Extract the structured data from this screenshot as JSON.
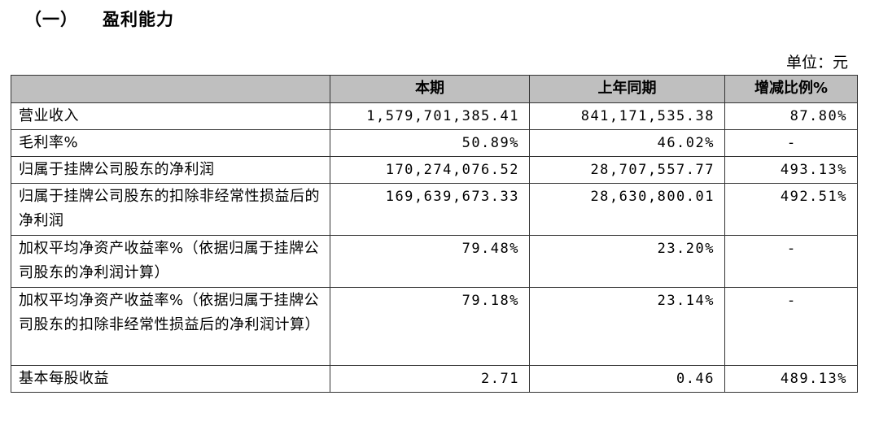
{
  "section": {
    "number": "（一）",
    "title": "盈利能力"
  },
  "unit": "单位：元",
  "table": {
    "headers": [
      "",
      "本期",
      "上年同期",
      "增减比例%"
    ],
    "rows": [
      {
        "label": "营业收入",
        "current": "1,579,701,385.41",
        "prior": "841,171,535.38",
        "change": "87.80%"
      },
      {
        "label": "毛利率%",
        "current": "50.89%",
        "prior": "46.02%",
        "change": "-"
      },
      {
        "label": "归属于挂牌公司股东的净利润",
        "current": "170,274,076.52",
        "prior": "28,707,557.77",
        "change": "493.13%"
      },
      {
        "label": "归属于挂牌公司股东的扣除非经常性损益后的净利润",
        "current": "169,639,673.33",
        "prior": "28,630,800.01",
        "change": "492.51%"
      },
      {
        "label": "加权平均净资产收益率%（依据归属于挂牌公司股东的净利润计算）",
        "current": "79.48%",
        "prior": "23.20%",
        "change": "-"
      },
      {
        "label": "加权平均净资产收益率%（依据归属于挂牌公司股东的扣除非经常性损益后的净利润计算）",
        "current": "79.18%",
        "prior": "23.14%",
        "change": "-"
      },
      {
        "label": "基本每股收益",
        "current": "2.71",
        "prior": "0.46",
        "change": "489.13%"
      }
    ]
  }
}
